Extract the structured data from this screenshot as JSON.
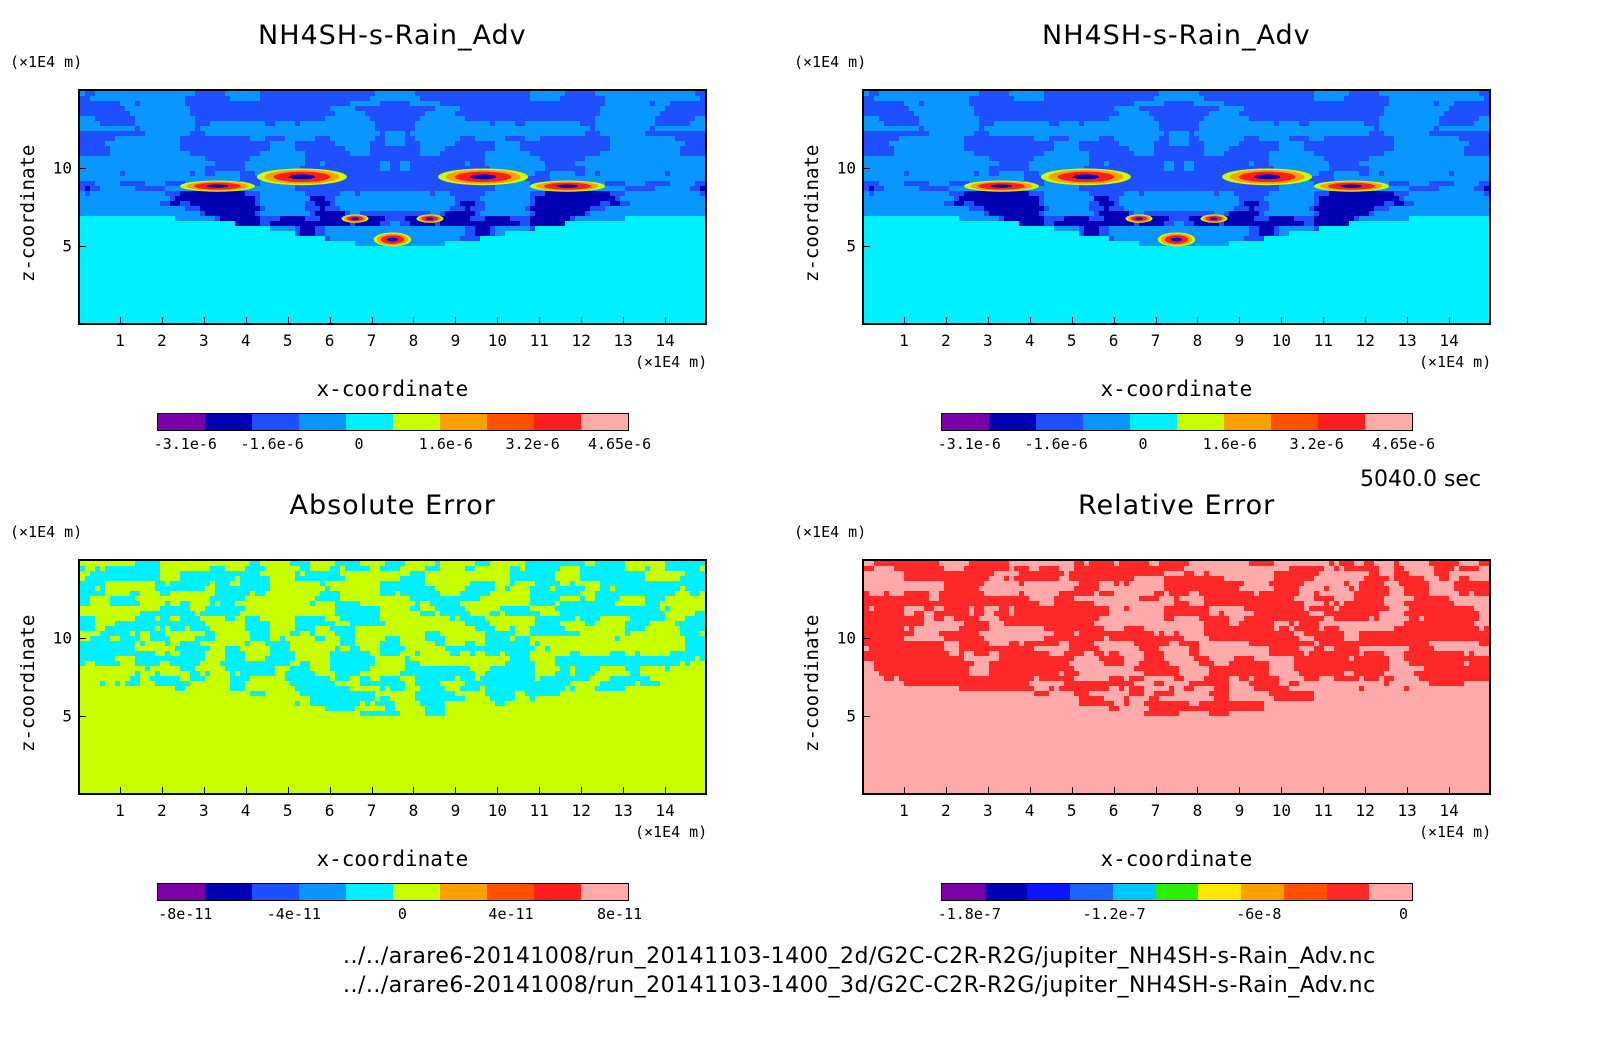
{
  "time_label": "5040.0 sec",
  "file_paths": [
    "../../arare6-20141008/run_20141103-1400_2d/G2C-C2R-R2G/jupiter_NH4SH-s-Rain_Adv.nc",
    "../../arare6-20141008/run_20141103-1400_3d/G2C-C2R-R2G/jupiter_NH4SH-s-Rain_Adv.nc"
  ],
  "chart_data": [
    {
      "type": "heatmap",
      "title": "NH4SH-s-Rain_Adv",
      "xlabel": "x-coordinate",
      "ylabel": "z-coordinate",
      "x_unit": "(×1E4 m)",
      "y_unit": "(×1E4 m)",
      "xlim": [
        0,
        15
      ],
      "ylim": [
        0,
        15
      ],
      "xticks": [
        "1",
        "2",
        "3",
        "4",
        "5",
        "6",
        "7",
        "8",
        "9",
        "10",
        "11",
        "12",
        "13",
        "14"
      ],
      "yticks": [
        "5",
        "10"
      ],
      "colorbar": {
        "colors": [
          "#7b00a8",
          "#0000b4",
          "#1e50ff",
          "#0a96ff",
          "#00f0ff",
          "#c8ff00",
          "#ffa000",
          "#ff5000",
          "#ff1e1e",
          "#ffaaaa"
        ],
        "labels": [
          "-3.1e-6",
          "-1.6e-6",
          "0",
          "1.6e-6",
          "3.2e-6",
          "4.65e-6"
        ]
      }
    },
    {
      "type": "heatmap",
      "title": "NH4SH-s-Rain_Adv",
      "xlabel": "x-coordinate",
      "ylabel": "z-coordinate",
      "x_unit": "(×1E4 m)",
      "y_unit": "(×1E4 m)",
      "xlim": [
        0,
        15
      ],
      "ylim": [
        0,
        15
      ],
      "xticks": [
        "1",
        "2",
        "3",
        "4",
        "5",
        "6",
        "7",
        "8",
        "9",
        "10",
        "11",
        "12",
        "13",
        "14"
      ],
      "yticks": [
        "5",
        "10"
      ],
      "colorbar": {
        "colors": [
          "#7b00a8",
          "#0000b4",
          "#1e50ff",
          "#0a96ff",
          "#00f0ff",
          "#c8ff00",
          "#ffa000",
          "#ff5000",
          "#ff1e1e",
          "#ffaaaa"
        ],
        "labels": [
          "-3.1e-6",
          "-1.6e-6",
          "0",
          "1.6e-6",
          "3.2e-6",
          "4.65e-6"
        ]
      }
    },
    {
      "type": "heatmap",
      "title": "Absolute Error",
      "xlabel": "x-coordinate",
      "ylabel": "z-coordinate",
      "x_unit": "(×1E4 m)",
      "y_unit": "(×1E4 m)",
      "xlim": [
        0,
        15
      ],
      "ylim": [
        0,
        15
      ],
      "xticks": [
        "1",
        "2",
        "3",
        "4",
        "5",
        "6",
        "7",
        "8",
        "9",
        "10",
        "11",
        "12",
        "13",
        "14"
      ],
      "yticks": [
        "5",
        "10"
      ],
      "colorbar": {
        "colors": [
          "#7b00a8",
          "#0000b4",
          "#1e50ff",
          "#0a96ff",
          "#00f0ff",
          "#c8ff00",
          "#ffa000",
          "#ff5000",
          "#ff1e1e",
          "#ffaaaa"
        ],
        "labels": [
          "-8e-11",
          "-4e-11",
          "0",
          "4e-11",
          "8e-11"
        ]
      }
    },
    {
      "type": "heatmap",
      "title": "Relative Error",
      "xlabel": "x-coordinate",
      "ylabel": "z-coordinate",
      "x_unit": "(×1E4 m)",
      "y_unit": "(×1E4 m)",
      "xlim": [
        0,
        15
      ],
      "ylim": [
        0,
        15
      ],
      "xticks": [
        "1",
        "2",
        "3",
        "4",
        "5",
        "6",
        "7",
        "8",
        "9",
        "10",
        "11",
        "12",
        "13",
        "14"
      ],
      "yticks": [
        "5",
        "10"
      ],
      "colorbar": {
        "colors": [
          "#7b00a8",
          "#0000b4",
          "#0a14ff",
          "#1e64ff",
          "#00c8ff",
          "#28f000",
          "#ffe600",
          "#ffa000",
          "#ff5000",
          "#ff2828",
          "#ffaaaa"
        ],
        "labels": [
          "-1.8e-7",
          "-1.2e-7",
          "-6e-8",
          "0"
        ]
      }
    }
  ]
}
